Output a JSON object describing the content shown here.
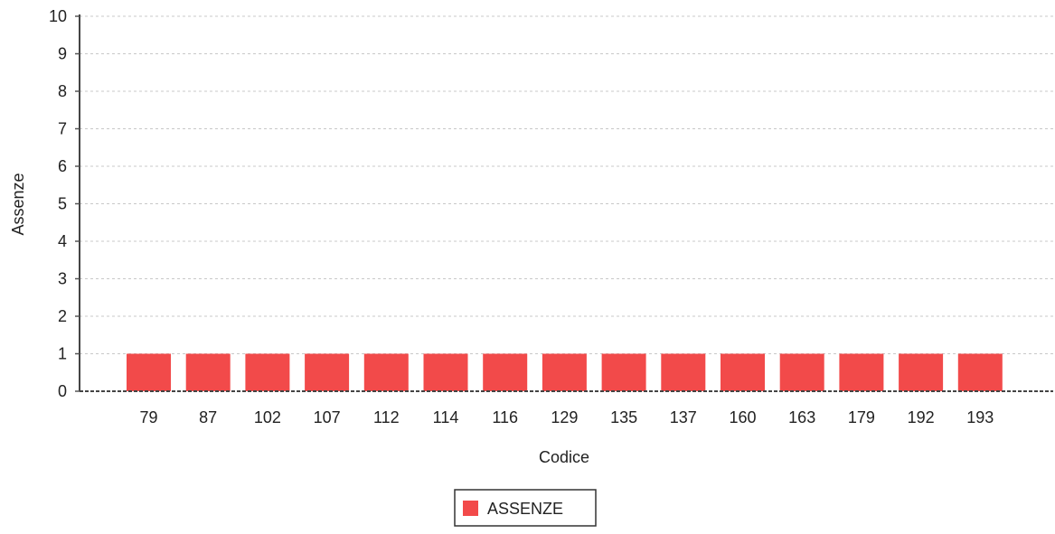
{
  "chart_data": {
    "type": "bar",
    "title": "",
    "xlabel": "Codice",
    "ylabel": "Assenze",
    "categories": [
      "79",
      "87",
      "102",
      "107",
      "112",
      "114",
      "116",
      "129",
      "135",
      "137",
      "160",
      "163",
      "179",
      "192",
      "193"
    ],
    "series": [
      {
        "name": "ASSENZE",
        "values": [
          1,
          1,
          1,
          1,
          1,
          1,
          1,
          1,
          1,
          1,
          1,
          1,
          1,
          1,
          1
        ],
        "color": "#f24a4a"
      }
    ],
    "ylim": [
      0,
      10
    ],
    "yticks": [
      0,
      1,
      2,
      3,
      4,
      5,
      6,
      7,
      8,
      9,
      10
    ],
    "grid": true,
    "legend_position": "bottom-center"
  }
}
